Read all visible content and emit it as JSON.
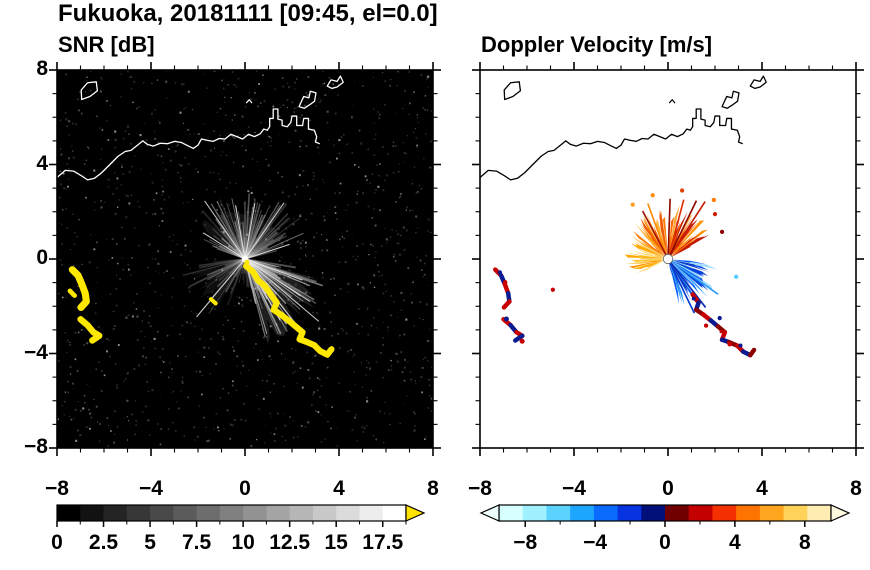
{
  "title": "Fukuoka, 20181111 [09:45, el=0.0]",
  "panel_titles": {
    "snr": "SNR [dB]",
    "doppler": "Doppler Velocity [m/s]"
  },
  "colorbars": {
    "snr": {
      "vmin": 0,
      "vmax": 18.75,
      "n_segments": 15,
      "values": [
        0,
        2.5,
        5,
        7.5,
        10,
        12.5,
        15,
        17.5
      ],
      "tick_labels": [
        "0",
        "2.5",
        "5",
        "7.5",
        "10",
        "12.5",
        "15",
        "17.5"
      ],
      "over_color": "#ffe400"
    },
    "doppler": {
      "vmin": -9.5,
      "vmax": 9.5,
      "values": [
        -8,
        -4,
        0,
        4,
        8
      ],
      "tick_labels": [
        "−8",
        "−4",
        "0",
        "4",
        "8"
      ],
      "colors": [
        "#d8ffff",
        "#a0f0ff",
        "#5cd2ff",
        "#1ea6ff",
        "#0a6bff",
        "#0733e0",
        "#001078",
        "#700000",
        "#c40000",
        "#f53000",
        "#ff7300",
        "#ffa51e",
        "#ffd25a",
        "#ffedb4"
      ],
      "under_color": "#eeffff",
      "over_color": "#fff9e0"
    }
  },
  "chart_data": {
    "type": "heatmap",
    "title": "Fukuoka, 20181111 [09:45, el=0.0]",
    "station": "Fukuoka",
    "date": "20181111",
    "time": "09:45",
    "elevation_deg": 0.0,
    "panels": [
      {
        "name": "SNR [dB]",
        "units": "dB",
        "colormap": "grayscale, yellow = over-range",
        "cb_ticks": [
          0,
          2.5,
          5,
          7.5,
          10,
          12.5,
          15,
          17.5
        ]
      },
      {
        "name": "Doppler Velocity [m/s]",
        "units": "m/s",
        "colormap": "cyan-blue-navy / darkred-red-orange-yellow diverging about 0",
        "cb_ticks": [
          -8,
          -4,
          0,
          4,
          8
        ]
      }
    ],
    "axes": {
      "x_range": [
        -8,
        8
      ],
      "y_range": [
        -8,
        8
      ],
      "xticks": [
        -8,
        -4,
        0,
        4,
        8
      ],
      "yticks": [
        8,
        4,
        0,
        -4,
        -8
      ],
      "xtick_labels": [
        "−8",
        "−4",
        "0",
        "4",
        "8"
      ],
      "ytick_labels": [
        "8",
        "4",
        "0",
        "−4",
        "−8"
      ],
      "minor_step": 1
    },
    "radar_origin_xy": [
      0,
      0
    ],
    "coastline": {
      "main": [
        [
          -8,
          3.45
        ],
        [
          -7.65,
          3.75
        ],
        [
          -7.3,
          3.72
        ],
        [
          -7.0,
          3.55
        ],
        [
          -6.7,
          3.35
        ],
        [
          -6.4,
          3.42
        ],
        [
          -6.1,
          3.65
        ],
        [
          -5.75,
          4.0
        ],
        [
          -5.4,
          4.35
        ],
        [
          -5.1,
          4.55
        ],
        [
          -4.85,
          4.6
        ],
        [
          -4.6,
          4.8
        ],
        [
          -4.35,
          5.0
        ],
        [
          -4.15,
          4.85
        ],
        [
          -3.9,
          4.78
        ],
        [
          -3.6,
          4.9
        ],
        [
          -3.3,
          4.88
        ],
        [
          -3.0,
          4.98
        ],
        [
          -2.7,
          4.93
        ],
        [
          -2.45,
          4.8
        ],
        [
          -2.2,
          4.68
        ],
        [
          -2.0,
          4.82
        ],
        [
          -1.85,
          5.08
        ],
        [
          -1.6,
          5.02
        ],
        [
          -1.35,
          4.98
        ],
        [
          -1.1,
          5.1
        ],
        [
          -0.85,
          5.08
        ],
        [
          -0.6,
          5.28
        ],
        [
          -0.35,
          5.18
        ],
        [
          -0.1,
          5.08
        ],
        [
          0.15,
          5.28
        ],
        [
          0.4,
          5.18
        ],
        [
          0.65,
          5.3
        ],
        [
          0.8,
          5.5
        ],
        [
          0.95,
          5.45
        ],
        [
          1.05,
          5.6
        ],
        [
          1.05,
          5.95
        ],
        [
          1.2,
          5.95
        ],
        [
          1.2,
          6.35
        ],
        [
          1.4,
          6.35
        ],
        [
          1.4,
          5.92
        ],
        [
          1.58,
          5.88
        ],
        [
          1.58,
          5.65
        ],
        [
          1.8,
          5.6
        ],
        [
          1.95,
          5.78
        ],
        [
          2.0,
          6.05
        ],
        [
          2.2,
          6.05
        ],
        [
          2.2,
          5.65
        ],
        [
          2.45,
          5.65
        ],
        [
          2.5,
          5.95
        ],
        [
          2.7,
          5.95
        ],
        [
          2.7,
          5.5
        ],
        [
          2.95,
          5.45
        ],
        [
          3.05,
          5.18
        ],
        [
          3.0,
          4.95
        ],
        [
          3.18,
          4.88
        ]
      ],
      "island_nw": [
        [
          -6.95,
          6.75
        ],
        [
          -6.6,
          6.88
        ],
        [
          -6.28,
          7.12
        ],
        [
          -6.33,
          7.5
        ],
        [
          -6.7,
          7.46
        ],
        [
          -6.97,
          7.15
        ]
      ],
      "port_piece1": [
        [
          2.3,
          6.45
        ],
        [
          2.5,
          6.88
        ],
        [
          2.72,
          6.82
        ],
        [
          2.78,
          7.1
        ],
        [
          3.02,
          7.03
        ],
        [
          2.96,
          6.68
        ],
        [
          2.74,
          6.52
        ],
        [
          2.52,
          6.38
        ]
      ],
      "port_piece2": [
        [
          3.5,
          7.32
        ],
        [
          3.66,
          7.58
        ],
        [
          3.92,
          7.52
        ],
        [
          4.06,
          7.74
        ],
        [
          4.18,
          7.48
        ],
        [
          3.92,
          7.28
        ],
        [
          3.7,
          7.22
        ]
      ],
      "tiny": [
        [
          0.05,
          6.6
        ],
        [
          0.18,
          6.74
        ],
        [
          0.3,
          6.6
        ]
      ]
    },
    "snr": {
      "background": "#000000",
      "arcs": [
        {
          "pts": [
            [
              -7.35,
              -0.45
            ],
            [
              -7.1,
              -0.7
            ],
            [
              -6.95,
              -1.05
            ],
            [
              -6.8,
              -1.45
            ],
            [
              -6.75,
              -1.8
            ],
            [
              -6.98,
              -2.05
            ]
          ],
          "w": 0.3
        },
        {
          "pts": [
            [
              -7.45,
              -1.35
            ],
            [
              -7.25,
              -1.55
            ]
          ],
          "w": 0.2
        },
        {
          "pts": [
            [
              -7.0,
              -2.55
            ],
            [
              -6.7,
              -2.8
            ],
            [
              -6.45,
              -3.1
            ],
            [
              -6.2,
              -3.25
            ],
            [
              -6.5,
              -3.45
            ]
          ],
          "w": 0.27
        },
        {
          "pts": [
            [
              -1.45,
              -1.7
            ],
            [
              -1.25,
              -1.88
            ]
          ],
          "w": 0.17
        },
        {
          "pts": [
            [
              0.05,
              -0.3
            ],
            [
              0.35,
              -0.55
            ],
            [
              0.55,
              -0.9
            ],
            [
              0.85,
              -1.15
            ],
            [
              1.1,
              -1.5
            ],
            [
              1.35,
              -1.85
            ],
            [
              1.22,
              -2.15
            ],
            [
              1.52,
              -2.35
            ],
            [
              1.85,
              -2.6
            ],
            [
              2.15,
              -2.85
            ],
            [
              2.45,
              -3.1
            ],
            [
              2.32,
              -3.4
            ],
            [
              2.6,
              -3.5
            ],
            [
              2.95,
              -3.65
            ],
            [
              3.2,
              -3.9
            ],
            [
              3.5,
              -4.05
            ],
            [
              3.68,
              -3.82
            ]
          ],
          "w": 0.26
        }
      ],
      "wedges": [
        {
          "a0": -15,
          "a1": -75,
          "r": 3.3,
          "fill": "#8a8a8a",
          "op": 0.22
        },
        {
          "a0": 35,
          "a1": 145,
          "r": 2.1,
          "fill": "#777777",
          "op": 0.15
        },
        {
          "a0": 195,
          "a1": 240,
          "r": 2.2,
          "fill": "#777777",
          "op": 0.12
        }
      ],
      "beam_fans": [
        {
          "a0": -78,
          "a1": -10,
          "n": 42,
          "l0": 1.2,
          "l1": 3.6,
          "o0": 0.25,
          "o1": 0.75
        },
        {
          "a0": 15,
          "a1": 80,
          "n": 30,
          "l0": 1.0,
          "l1": 3.0,
          "o0": 0.15,
          "o1": 0.5
        },
        {
          "a0": 82,
          "a1": 160,
          "n": 34,
          "l0": 0.9,
          "l1": 2.8,
          "o0": 0.15,
          "o1": 0.5
        },
        {
          "a0": 185,
          "a1": 250,
          "n": 20,
          "l0": 0.8,
          "l1": 3.0,
          "o0": 0.1,
          "o1": 0.4
        },
        {
          "a0": 255,
          "a1": 282,
          "n": 8,
          "l0": 0.6,
          "l1": 1.5,
          "o0": 0.08,
          "o1": 0.25
        }
      ],
      "bright_spokes": [
        [
          -40,
          4.1
        ],
        [
          -52,
          3.7
        ],
        [
          -33,
          3.3
        ],
        [
          -60,
          3.0
        ],
        [
          55,
          2.9
        ],
        [
          125,
          3.0
        ],
        [
          230,
          3.2
        ],
        [
          80,
          2.4
        ],
        [
          100,
          2.3
        ],
        [
          18,
          2.0
        ],
        [
          148,
          2.1
        ],
        [
          -20,
          2.6
        ]
      ]
    },
    "doppler": {
      "background": "#ffffff",
      "fans": [
        {
          "a0": -78,
          "a1": -6,
          "n": 38,
          "r0": 0.7,
          "r1": 2.5,
          "palette": [
            "#79c9ff",
            "#2e9bff",
            "#0a66ff",
            "#0640d6",
            "#0a2bb0",
            "#9fdcff",
            "#0550e8"
          ]
        },
        {
          "a0": 28,
          "a1": 86,
          "n": 28,
          "r0": 0.8,
          "r1": 2.45,
          "palette": [
            "#ff9100",
            "#ff6a00",
            "#e03000",
            "#ffa733",
            "#c01800"
          ]
        },
        {
          "a0": 94,
          "a1": 150,
          "n": 26,
          "r0": 0.7,
          "r1": 2.2,
          "palette": [
            "#ff9100",
            "#ff7b00",
            "#ffb340",
            "#f05800"
          ]
        },
        {
          "a0": 152,
          "a1": 206,
          "n": 22,
          "r0": 0.5,
          "r1": 1.95,
          "palette": [
            "#ffc844",
            "#ffa800",
            "#ffd878",
            "#ff9100"
          ]
        }
      ],
      "spikes": [
        [
          57,
          2.9,
          "#c81e00"
        ],
        [
          64,
          2.75,
          "#8c0a00"
        ],
        [
          75,
          2.6,
          "#e03000"
        ],
        [
          88,
          2.55,
          "#8c0a00"
        ],
        [
          110,
          2.5,
          "#ff8a00"
        ],
        [
          118,
          2.3,
          "#a01000"
        ],
        [
          -52,
          2.6,
          "#0a2bb0"
        ],
        [
          -64,
          2.55,
          "#063bd0"
        ],
        [
          -35,
          2.6,
          "#2e9bff"
        ]
      ],
      "dots": [
        [
          2.0,
          1.9,
          "#c82000"
        ],
        [
          2.3,
          1.15,
          "#8c0000"
        ],
        [
          -0.65,
          2.7,
          "#ff8a00"
        ],
        [
          1.95,
          2.5,
          "#ff7b00"
        ],
        [
          2.2,
          -2.5,
          "#0a1a90"
        ],
        [
          1.62,
          -2.82,
          "#c80000"
        ],
        [
          -4.9,
          -1.3,
          "#c80000"
        ],
        [
          0.6,
          2.9,
          "#e04000"
        ],
        [
          -1.5,
          2.3,
          "#ff9d20"
        ],
        [
          2.9,
          -0.75,
          "#55ccff"
        ]
      ],
      "chains": [
        {
          "pts": [
            [
              -7.35,
              -0.45
            ],
            [
              -7.1,
              -0.7
            ],
            [
              -6.95,
              -1.05
            ],
            [
              -6.8,
              -1.45
            ],
            [
              -6.75,
              -1.8
            ],
            [
              -6.98,
              -2.05
            ]
          ],
          "colors": [
            "#c80000",
            "#0a1a90"
          ]
        },
        {
          "pts": [
            [
              -7.0,
              -2.55
            ],
            [
              -6.7,
              -2.8
            ],
            [
              -6.45,
              -3.1
            ],
            [
              -6.2,
              -3.25
            ],
            [
              -6.5,
              -3.45
            ]
          ],
          "colors": [
            "#c80000",
            "#0a1a90"
          ]
        },
        {
          "pts": [
            [
              1.05,
              -1.5
            ],
            [
              1.3,
              -1.85
            ],
            [
              1.2,
              -2.15
            ],
            [
              1.5,
              -2.35
            ],
            [
              1.82,
              -2.6
            ],
            [
              2.12,
              -2.85
            ],
            [
              2.42,
              -3.1
            ],
            [
              2.3,
              -3.42
            ],
            [
              2.6,
              -3.52
            ],
            [
              2.95,
              -3.67
            ],
            [
              3.2,
              -3.92
            ],
            [
              3.5,
              -4.07
            ],
            [
              3.66,
              -3.85
            ]
          ],
          "colors": [
            "#c80000",
            "#0a1a90",
            "#8c0000"
          ]
        }
      ],
      "center_marker": {
        "r": 0.2,
        "fill": "#ffffff",
        "stroke": "#666666"
      }
    }
  }
}
